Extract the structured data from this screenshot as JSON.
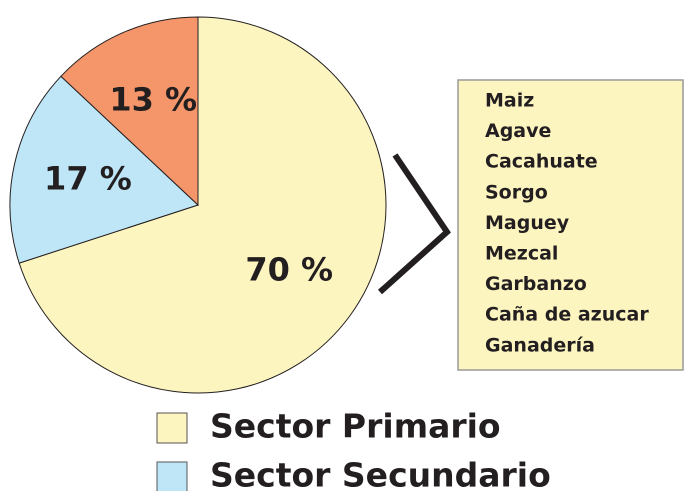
{
  "chart_data": {
    "type": "pie",
    "categories": [
      "Sector Primario",
      "Sector Secundario",
      null
    ],
    "values": [
      70,
      17,
      13
    ],
    "value_labels": [
      "70 %",
      "17 %",
      "13 %"
    ],
    "colors": [
      "#fdf5c0",
      "#bfe6f7",
      "#f4956a"
    ],
    "annotation": {
      "items": [
        "Maiz",
        "Agave",
        "Cacahuate",
        "Sorgo",
        "Maguey",
        "Mezcal",
        "Garbanzo",
        "Caña de azucar",
        "Ganadería"
      ]
    }
  }
}
